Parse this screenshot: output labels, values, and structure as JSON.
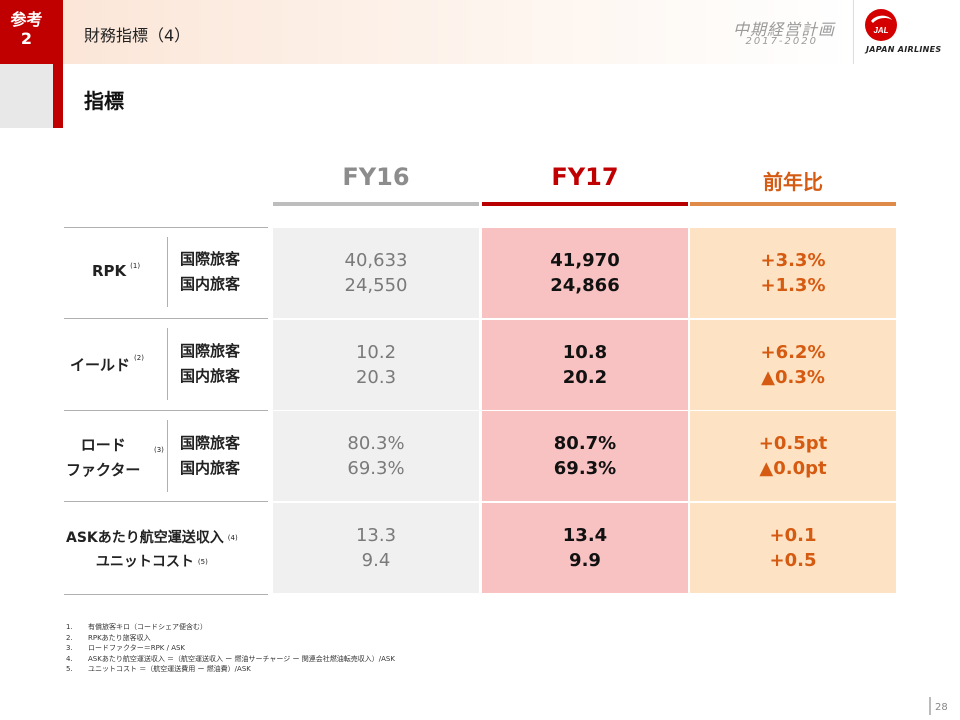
{
  "header": {
    "badge_line1": "参考",
    "badge_line2": "2",
    "title": "財務指標（4）",
    "plan_title": "中期経営計画",
    "plan_years": "2017-2020",
    "logo_mark": "JAL",
    "logo_text": "JAPAN AIRLINES"
  },
  "section_title": "指標",
  "columns": [
    {
      "label": "FY16",
      "color": "#8c8c8c",
      "line": "#bdbdbd"
    },
    {
      "label": "FY17",
      "color": "#c00000",
      "line": "#b80000"
    },
    {
      "label": "前年比",
      "color": "#d55a12",
      "line": "#e08a4a"
    }
  ],
  "sub_labels": [
    "国際旅客",
    "国内旅客"
  ],
  "rows": [
    {
      "label_lines": [
        "RPK"
      ],
      "note": "(1)",
      "fy16": [
        "40,633",
        "24,550"
      ],
      "fy17": [
        "41,970",
        "24,866"
      ],
      "yoy": [
        "+3.3%",
        "+1.3%"
      ]
    },
    {
      "label_lines": [
        "イールド"
      ],
      "note": "(2)",
      "fy16": [
        "10.2",
        "20.3"
      ],
      "fy17": [
        "10.8",
        "20.2"
      ],
      "yoy": [
        "+6.2%",
        "▲0.3%"
      ]
    },
    {
      "label_lines": [
        "ロード",
        "ファクター"
      ],
      "note": "(3)",
      "fy16": [
        "80.3%",
        "69.3%"
      ],
      "fy17": [
        "80.7%",
        "69.3%"
      ],
      "yoy": [
        "+0.5pt",
        "▲0.0pt"
      ]
    },
    {
      "label_lines": [
        "ASKあたり航空運送収入",
        "ユニットコスト"
      ],
      "notes": [
        "(4)",
        "(5)"
      ],
      "fy16": [
        "13.3",
        "9.4"
      ],
      "fy17": [
        "13.4",
        "9.9"
      ],
      "yoy": [
        "+0.1",
        "+0.5"
      ]
    }
  ],
  "footnotes": [
    {
      "num": "1.",
      "text": "有償旅客キロ（コードシェア便含む）"
    },
    {
      "num": "2.",
      "text": "RPKあたり旅客収入"
    },
    {
      "num": "3.",
      "text": "ロードファクター＝RPK / ASK"
    },
    {
      "num": "4.",
      "text": "ASKあたり航空運送収入 ＝（航空運送収入 ー 燃油サーチャージ ー 関連会社燃油転売収入）/ASK"
    },
    {
      "num": "5.",
      "text": "ユニットコスト ＝（航空運送費用 ー 燃油費）/ASK"
    }
  ],
  "page_number": "28"
}
